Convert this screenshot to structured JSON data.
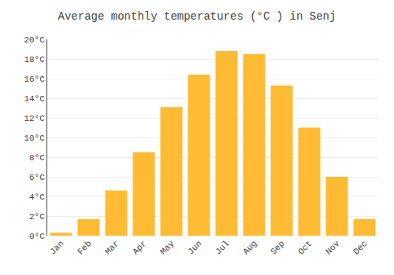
{
  "chart_data": {
    "type": "bar",
    "title": "Average monthly temperatures (°C ) in Senj",
    "categories": [
      "Jan",
      "Feb",
      "Mar",
      "Apr",
      "May",
      "Jun",
      "Jul",
      "Aug",
      "Sep",
      "Oct",
      "Nov",
      "Dec"
    ],
    "values": [
      0.3,
      1.7,
      4.6,
      8.5,
      13.1,
      16.4,
      18.8,
      18.5,
      15.3,
      11.0,
      6.0,
      1.7
    ],
    "color": "#FFBB33",
    "ylim": [
      0,
      20
    ],
    "yticks": [
      {
        "value": 0,
        "label": "0°C"
      },
      {
        "value": 2,
        "label": "2°C"
      },
      {
        "value": 4,
        "label": "4°C"
      },
      {
        "value": 6,
        "label": "6°C"
      },
      {
        "value": 8,
        "label": "8°C"
      },
      {
        "value": 10,
        "label": "10°C"
      },
      {
        "value": 12,
        "label": "12°C"
      },
      {
        "value": 14,
        "label": "14°C"
      },
      {
        "value": 16,
        "label": "16°C"
      },
      {
        "value": 18,
        "label": "18°C"
      },
      {
        "value": 20,
        "label": "20°C"
      }
    ],
    "grid": true
  }
}
